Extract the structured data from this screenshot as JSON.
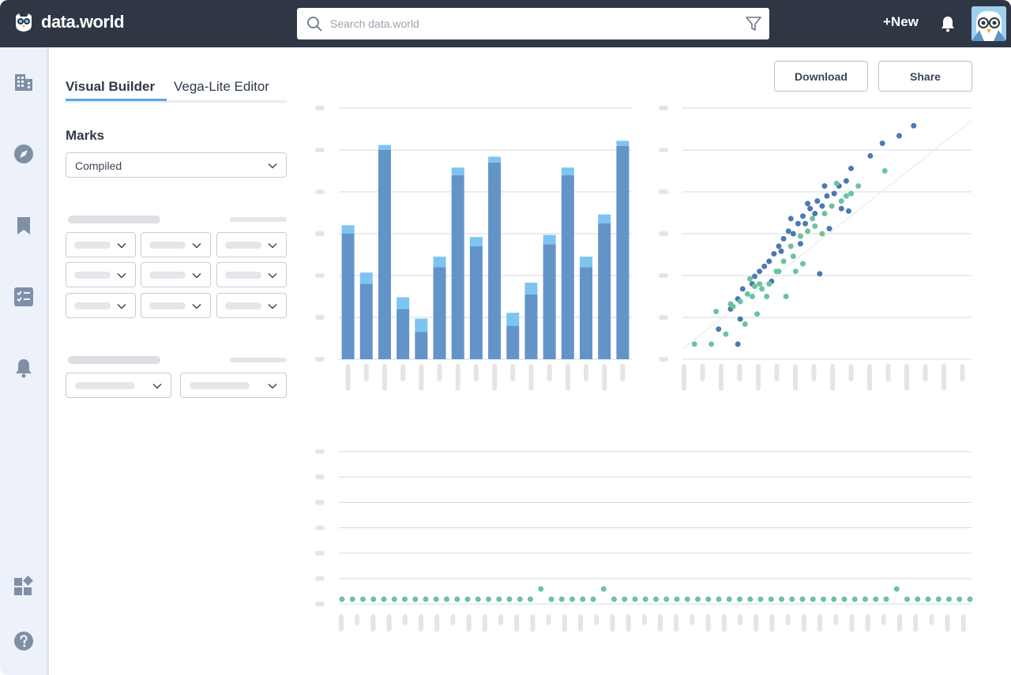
{
  "app": {
    "brand": "data.world"
  },
  "header": {
    "search_placeholder": "Search data.world",
    "new_label": "+New"
  },
  "panel": {
    "tabs": [
      {
        "label": "Visual Builder",
        "active": true
      },
      {
        "label": "Vega-Lite Editor",
        "active": false
      }
    ],
    "marks_title": "Marks",
    "marks_value": "Compiled"
  },
  "actions": {
    "download_label": "Download",
    "share_label": "Share"
  },
  "colors": {
    "topbar": "#2f3745",
    "bar_primary": "#6294c8",
    "bar_stack": "#7cc4f2",
    "scatter_blue": "#4c78b5",
    "scatter_green": "#6cc3a0"
  },
  "chart_data": [
    {
      "type": "bar",
      "stacked": true,
      "series": [
        {
          "values": [
            30,
            18,
            50,
            12,
            6.5,
            22,
            44,
            27,
            47,
            8,
            15.5,
            27.5,
            44,
            22,
            32.5,
            51
          ]
        },
        {
          "values": [
            2,
            2.7,
            1.2,
            2.8,
            3.2,
            2.5,
            1.8,
            2.2,
            1.4,
            3.1,
            2.8,
            2.2,
            1.8,
            2.5,
            2.1,
            1.2
          ]
        }
      ],
      "ylim": [
        0,
        60
      ],
      "grid": true
    },
    {
      "type": "scatter",
      "series": [
        {
          "points": [
            [
              1.5,
              1.2
            ],
            [
              2.3,
              2.4
            ],
            [
              2.0,
              2.0
            ],
            [
              2.5,
              2.8
            ],
            [
              3.0,
              3.3
            ],
            [
              3.2,
              3.5
            ],
            [
              2.9,
              3.0
            ],
            [
              2.4,
              1.6
            ],
            [
              3.4,
              3.7
            ],
            [
              2.3,
              0.6
            ],
            [
              3.6,
              3.9
            ],
            [
              3.8,
              4.2
            ],
            [
              4.0,
              4.5
            ],
            [
              4.2,
              4.8
            ],
            [
              4.4,
              5.1
            ],
            [
              4.1,
              4.3
            ],
            [
              4.6,
              5.0
            ],
            [
              4.8,
              5.4
            ],
            [
              5.0,
              5.7
            ],
            [
              5.3,
              6.0
            ],
            [
              5.1,
              5.4
            ],
            [
              5.6,
              6.3
            ],
            [
              5.8,
              6.1
            ],
            [
              6.0,
              6.5
            ],
            [
              5.5,
              5.8
            ],
            [
              6.3,
              6.6
            ],
            [
              6.1,
              5.2
            ],
            [
              5.7,
              3.4
            ],
            [
              6.5,
              6.9
            ],
            [
              6.8,
              7.1
            ],
            [
              7.0,
              7.6
            ],
            [
              7.8,
              8.1
            ],
            [
              8.3,
              8.6
            ],
            [
              9.0,
              8.9
            ],
            [
              9.6,
              9.3
            ],
            [
              5.9,
              6.9
            ],
            [
              6.6,
              6.0
            ],
            [
              4.5,
              5.6
            ],
            [
              5.2,
              6.2
            ],
            [
              6.9,
              5.9
            ],
            [
              3.7,
              3.1
            ],
            [
              4.9,
              4.6
            ]
          ]
        },
        {
          "points": [
            [
              0.5,
              0.6
            ],
            [
              1.2,
              0.6
            ],
            [
              1.4,
              1.9
            ],
            [
              2.1,
              2.1
            ],
            [
              2.4,
              2.3
            ],
            [
              2.7,
              2.6
            ],
            [
              3.0,
              2.9
            ],
            [
              3.3,
              2.8
            ],
            [
              2.9,
              2.5
            ],
            [
              2.8,
              3.2
            ],
            [
              3.5,
              2.5
            ],
            [
              3.9,
              3.5
            ],
            [
              4.2,
              3.9
            ],
            [
              4.5,
              4.5
            ],
            [
              4.6,
              4.1
            ],
            [
              4.9,
              4.9
            ],
            [
              5.2,
              5.1
            ],
            [
              5.5,
              5.3
            ],
            [
              5.9,
              5.8
            ],
            [
              6.2,
              6.1
            ],
            [
              6.6,
              6.3
            ],
            [
              7.0,
              6.6
            ],
            [
              7.3,
              6.9
            ],
            [
              8.4,
              7.5
            ],
            [
              3.6,
              3.0
            ],
            [
              4.3,
              2.5
            ],
            [
              4.7,
              3.5
            ],
            [
              5.0,
              3.8
            ],
            [
              2.0,
              2.2
            ],
            [
              2.6,
              1.4
            ],
            [
              1.8,
              1.0
            ],
            [
              3.1,
              1.8
            ],
            [
              6.4,
              7.0
            ],
            [
              6.8,
              6.5
            ],
            [
              5.4,
              5.6
            ],
            [
              4.0,
              3.5
            ],
            [
              3.2,
              3.0
            ],
            [
              5.8,
              5.0
            ]
          ]
        }
      ],
      "xlim": [
        0,
        12
      ],
      "ylim": [
        0,
        10
      ],
      "trendline": true,
      "grid": true
    },
    {
      "type": "scatter",
      "series": [
        {
          "points": [
            [
              1,
              0
            ],
            [
              2,
              0
            ],
            [
              3,
              0
            ],
            [
              4,
              0
            ],
            [
              5,
              0
            ],
            [
              6,
              0
            ],
            [
              7,
              0
            ],
            [
              8,
              0
            ],
            [
              9,
              0
            ],
            [
              10,
              0
            ],
            [
              11,
              0
            ],
            [
              12,
              0
            ],
            [
              13,
              0
            ],
            [
              14,
              0
            ],
            [
              15,
              0
            ],
            [
              16,
              0
            ],
            [
              17,
              0
            ],
            [
              18,
              0
            ],
            [
              19,
              0
            ],
            [
              20,
              1
            ],
            [
              21,
              0
            ],
            [
              22,
              0
            ],
            [
              23,
              0
            ],
            [
              24,
              0
            ],
            [
              25,
              0
            ],
            [
              26,
              1
            ],
            [
              27,
              0
            ],
            [
              28,
              0
            ],
            [
              29,
              0
            ],
            [
              30,
              0
            ],
            [
              31,
              0
            ],
            [
              32,
              0
            ],
            [
              33,
              0
            ],
            [
              34,
              0
            ],
            [
              35,
              0
            ],
            [
              36,
              0
            ],
            [
              37,
              0
            ],
            [
              38,
              0
            ],
            [
              39,
              0
            ],
            [
              40,
              0
            ],
            [
              41,
              0
            ],
            [
              42,
              0
            ],
            [
              43,
              0
            ],
            [
              44,
              0
            ],
            [
              45,
              0
            ],
            [
              46,
              0
            ],
            [
              47,
              0
            ],
            [
              48,
              0
            ],
            [
              49,
              0
            ],
            [
              50,
              0
            ],
            [
              51,
              0
            ],
            [
              52,
              0
            ],
            [
              53,
              0
            ],
            [
              54,
              1
            ],
            [
              55,
              0
            ],
            [
              56,
              0
            ],
            [
              57,
              0
            ],
            [
              58,
              0
            ],
            [
              59,
              0
            ],
            [
              60,
              0
            ],
            [
              61,
              0
            ]
          ]
        }
      ],
      "ylim": [
        0,
        6
      ],
      "grid": true
    }
  ]
}
